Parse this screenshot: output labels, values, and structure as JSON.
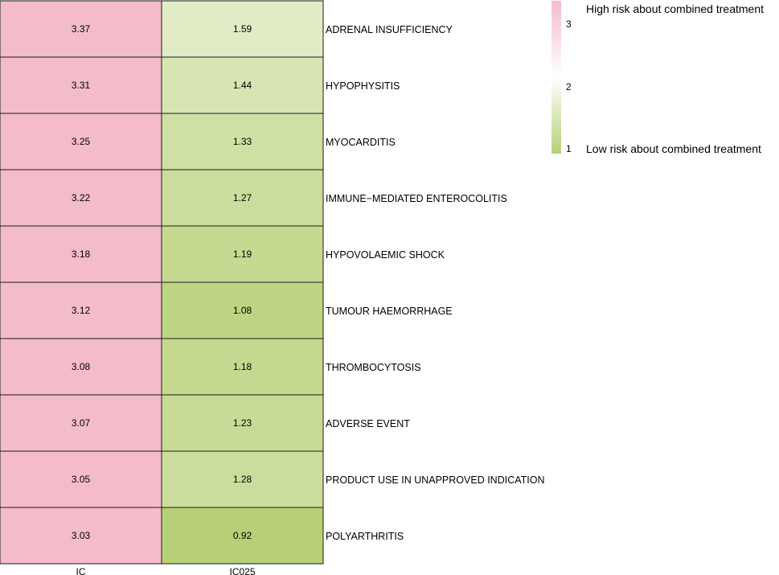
{
  "chart_data": {
    "type": "heatmap",
    "columns": [
      "IC",
      "IC025"
    ],
    "rows": [
      "ADRENAL INSUFFICIENCY",
      "HYPOPHYSITIS",
      "MYOCARDITIS",
      "IMMUNE−MEDIATED ENTEROCOLITIS",
      "HYPOVOLAEMIC SHOCK",
      "TUMOUR HAEMORRHAGE",
      "THROMBOCYTOSIS",
      "ADVERSE EVENT",
      "PRODUCT USE IN UNAPPROVED INDICATION",
      "POLYARTHRITIS"
    ],
    "values": [
      [
        3.37,
        1.59
      ],
      [
        3.31,
        1.44
      ],
      [
        3.25,
        1.33
      ],
      [
        3.22,
        1.27
      ],
      [
        3.18,
        1.19
      ],
      [
        3.12,
        1.08
      ],
      [
        3.08,
        1.18
      ],
      [
        3.07,
        1.23
      ],
      [
        3.05,
        1.28
      ],
      [
        3.03,
        0.92
      ]
    ],
    "color_scale": {
      "range": [
        1,
        3
      ],
      "low_color": "#b7d077",
      "mid_color": "#ffffff",
      "high_color": "#f4bccb",
      "ticks": [
        "1",
        "2",
        "3"
      ]
    },
    "legend": {
      "high_label": "High risk about combined treatment",
      "low_label": "Low risk about combined treatment",
      "placement": "top-right"
    }
  }
}
